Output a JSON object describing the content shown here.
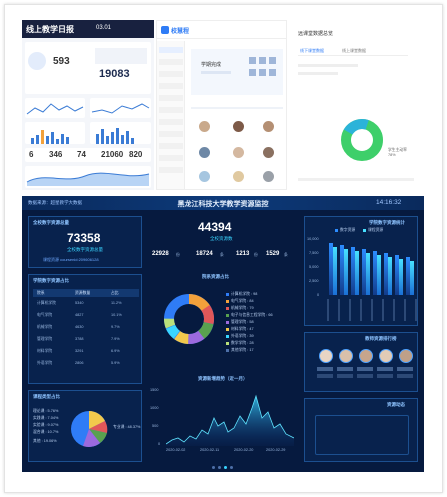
{
  "top_left": {
    "header_title": "线上教学日报",
    "date": "03.01",
    "stats": [
      "593",
      "19083",
      "6",
      "346",
      "74",
      "21060",
      "820"
    ]
  },
  "top_middle": {
    "logo": "校慧程",
    "hero_label": "学期完成"
  },
  "top_right": {
    "title": "远课堂数据总览",
    "tabs": [
      "线下课堂数据",
      "线上课堂数据"
    ],
    "percent_a": "学生主动率 78%"
  },
  "dashboard": {
    "brand": "数据来源：超星教学大数据",
    "title": "黑龙江科技大学教学资源监控",
    "clock": "14:16:32",
    "left_top": {
      "title": "全校数字资源总量",
      "value": "73358",
      "sub": "全校数字资源总量",
      "note": "课程资源 coursenid:209606128"
    },
    "left_mid": {
      "title": "学院数字资源占比",
      "headers": [
        "院系",
        "资源数量",
        "占比"
      ],
      "rows": [
        [
          "计算机学院",
          "5340",
          "11.2%"
        ],
        [
          "电气学院",
          "4827",
          "10.1%"
        ],
        [
          "机械学院",
          "4630",
          "9.7%"
        ],
        [
          "管理学院",
          "3788",
          "7.9%"
        ],
        [
          "材料学院",
          "3291",
          "6.9%"
        ],
        [
          "外语学院",
          "2806",
          "5.9%"
        ]
      ]
    },
    "left_bottom": {
      "title": "课程类型占比",
      "labels": [
        "理论课 : 5.76%",
        "实践课 : 7.04%",
        "实验课 : 9.07%",
        "混合课 : 10.7%",
        "其他 : 19.06%",
        "专业课 : 48.37%"
      ]
    },
    "center_top": {
      "value": "44394",
      "sub": "全校资源数",
      "stats": [
        {
          "value": "22928",
          "unit": "份"
        },
        {
          "value": "18724",
          "unit": "条"
        },
        {
          "value": "1213",
          "unit": "份"
        },
        {
          "value": "1529",
          "unit": "条"
        }
      ]
    },
    "center_mid": {
      "title": "院系资源占比",
      "legend": [
        "计算机学院 : 98",
        "电气学院 : 84",
        "机械学院 : 79",
        "电子与信息工程学院 : 66",
        "管理学院 : 58",
        "材料学院 : 47",
        "外语学院 : 39",
        "数学学院 : 28",
        "其他学院 : 17"
      ]
    },
    "center_bottom": {
      "title": "资源新增趋势（近一月）",
      "x_labels": [
        "2020-02-02",
        "2020-02-11",
        "2020-02-20",
        "2020-02-29"
      ],
      "y_labels": [
        "1500",
        "1000",
        "500",
        "0"
      ]
    },
    "right_top": {
      "title": "学院数字资源统计",
      "legend": [
        "数字资源",
        "课程资源"
      ],
      "y_labels": [
        "10,000",
        "7,500",
        "5,000",
        "2,500",
        "0"
      ]
    },
    "right_mid": {
      "title": "教师资源排行榜"
    },
    "right_bottom": {
      "title": "资源动态"
    }
  }
}
